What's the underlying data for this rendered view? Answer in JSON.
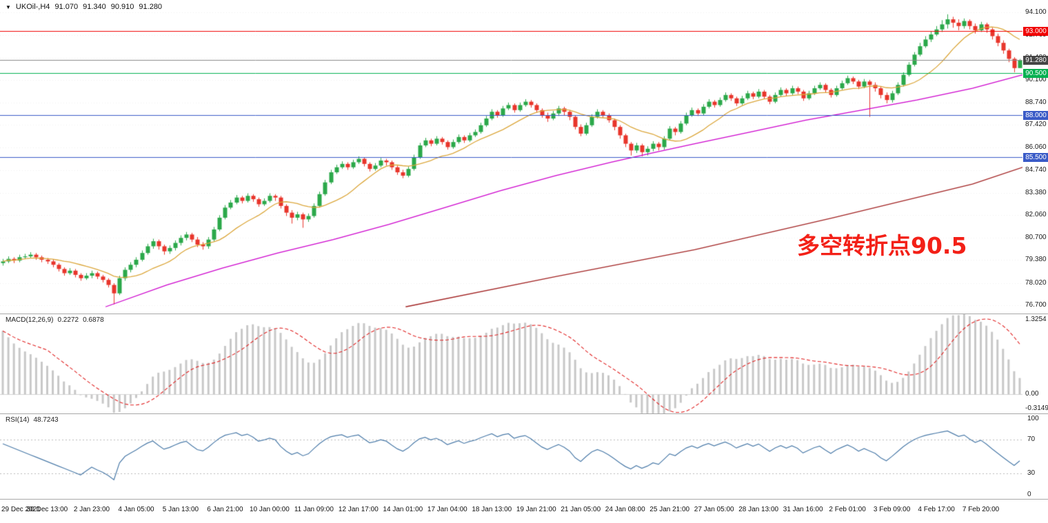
{
  "header": {
    "dropdown_icon": "▼",
    "symbol": "UKOil-,H4",
    "open": "91.070",
    "high": "91.340",
    "low": "90.910",
    "close": "91.280"
  },
  "annotation": {
    "text": "多空转折点90.5"
  },
  "colors": {
    "up": "#2ba84a",
    "down": "#e8352b",
    "ma_fast": "#dba63a",
    "ma_mid": "#cc00cc",
    "ma_slow": "#a02020",
    "level_red": "#f00000",
    "level_green": "#00b050",
    "level_blue": "#3a5bc7",
    "current_price": "#8a8a8a",
    "current_tag_bg": "#454545",
    "macd_hist": "#c8c8c8",
    "macd_signal": "#e02020",
    "rsi_line": "#4a7aa8",
    "rsi_level": "#b8b8b8",
    "grid": "#ededed",
    "separator": "#a8a8a8",
    "annotation": "#f32017",
    "axis_text": "#1a1a1a"
  },
  "chart_data": {
    "type": "candlestick",
    "symbol": "UKOil-",
    "timeframe": "H4",
    "ylim": [
      76.2,
      94.85
    ],
    "first_open": 79.2,
    "candles": [
      [
        79.45,
        79.05,
        79.3
      ],
      [
        79.6,
        79.2,
        79.45
      ],
      [
        79.55,
        79.2,
        79.35
      ],
      [
        79.7,
        79.25,
        79.55
      ],
      [
        79.75,
        79.45,
        79.6
      ],
      [
        79.85,
        79.5,
        79.7
      ],
      [
        79.8,
        79.4,
        79.55
      ],
      [
        79.65,
        79.25,
        79.4
      ],
      [
        79.5,
        79.15,
        79.3
      ],
      [
        79.4,
        78.95,
        79.1
      ],
      [
        79.2,
        78.7,
        78.85
      ],
      [
        78.95,
        78.45,
        78.6
      ],
      [
        78.9,
        78.5,
        78.75
      ],
      [
        78.85,
        78.35,
        78.5
      ],
      [
        78.6,
        78.15,
        78.3
      ],
      [
        78.6,
        78.2,
        78.45
      ],
      [
        78.75,
        78.3,
        78.6
      ],
      [
        78.7,
        78.25,
        78.4
      ],
      [
        78.5,
        78.05,
        78.2
      ],
      [
        78.3,
        77.75,
        77.9
      ],
      [
        78.0,
        76.75,
        77.4
      ],
      [
        78.45,
        77.3,
        78.3
      ],
      [
        78.95,
        78.15,
        78.8
      ],
      [
        79.25,
        78.65,
        79.1
      ],
      [
        79.55,
        78.95,
        79.4
      ],
      [
        79.95,
        79.3,
        79.8
      ],
      [
        80.35,
        79.7,
        80.2
      ],
      [
        80.65,
        80.05,
        80.5
      ],
      [
        80.6,
        80.0,
        80.2
      ],
      [
        80.3,
        79.7,
        79.9
      ],
      [
        80.25,
        79.75,
        80.1
      ],
      [
        80.55,
        79.95,
        80.4
      ],
      [
        80.85,
        80.25,
        80.7
      ],
      [
        81.05,
        80.55,
        80.9
      ],
      [
        81.0,
        80.45,
        80.6
      ],
      [
        80.75,
        80.15,
        80.3
      ],
      [
        80.45,
        80.0,
        80.2
      ],
      [
        80.75,
        80.05,
        80.6
      ],
      [
        81.35,
        80.5,
        81.2
      ],
      [
        82.05,
        81.1,
        81.9
      ],
      [
        82.65,
        81.8,
        82.5
      ],
      [
        82.95,
        82.4,
        82.8
      ],
      [
        83.25,
        82.7,
        83.1
      ],
      [
        83.2,
        82.75,
        82.9
      ],
      [
        83.35,
        82.8,
        83.2
      ],
      [
        83.3,
        82.85,
        83.0
      ],
      [
        83.1,
        82.55,
        82.7
      ],
      [
        83.05,
        82.6,
        82.9
      ],
      [
        83.35,
        82.8,
        83.2
      ],
      [
        83.3,
        82.9,
        83.1
      ],
      [
        83.2,
        82.45,
        82.6
      ],
      [
        82.7,
        82.0,
        82.2
      ],
      [
        82.35,
        81.55,
        81.9
      ],
      [
        82.25,
        81.75,
        82.1
      ],
      [
        82.2,
        81.3,
        81.8
      ],
      [
        82.15,
        81.65,
        82.0
      ],
      [
        82.75,
        81.9,
        82.6
      ],
      [
        83.45,
        82.5,
        83.3
      ],
      [
        84.15,
        83.2,
        84.0
      ],
      [
        84.75,
        83.9,
        84.6
      ],
      [
        85.05,
        84.5,
        84.9
      ],
      [
        85.25,
        84.8,
        85.1
      ],
      [
        85.2,
        84.75,
        84.9
      ],
      [
        85.35,
        84.8,
        85.2
      ],
      [
        85.55,
        85.1,
        85.4
      ],
      [
        85.5,
        84.95,
        85.1
      ],
      [
        85.2,
        84.65,
        84.8
      ],
      [
        85.15,
        84.7,
        85.0
      ],
      [
        85.45,
        84.9,
        85.3
      ],
      [
        85.4,
        85.0,
        85.2
      ],
      [
        85.3,
        84.75,
        84.9
      ],
      [
        85.0,
        84.45,
        84.6
      ],
      [
        84.75,
        84.25,
        84.4
      ],
      [
        84.95,
        84.3,
        84.8
      ],
      [
        85.65,
        84.7,
        85.5
      ],
      [
        86.35,
        85.4,
        86.2
      ],
      [
        86.65,
        86.1,
        86.5
      ],
      [
        86.6,
        86.15,
        86.3
      ],
      [
        86.75,
        86.2,
        86.6
      ],
      [
        86.7,
        86.25,
        86.4
      ],
      [
        86.5,
        85.95,
        86.1
      ],
      [
        86.55,
        86.0,
        86.4
      ],
      [
        86.85,
        86.3,
        86.7
      ],
      [
        86.8,
        86.35,
        86.5
      ],
      [
        86.95,
        86.4,
        86.8
      ],
      [
        87.15,
        86.7,
        87.0
      ],
      [
        87.55,
        86.9,
        87.4
      ],
      [
        87.95,
        87.3,
        87.8
      ],
      [
        88.35,
        87.7,
        88.2
      ],
      [
        88.3,
        87.85,
        88.0
      ],
      [
        88.55,
        87.9,
        88.4
      ],
      [
        88.75,
        88.3,
        88.6
      ],
      [
        88.7,
        88.15,
        88.3
      ],
      [
        88.75,
        88.2,
        88.6
      ],
      [
        88.95,
        88.5,
        88.8
      ],
      [
        88.9,
        88.45,
        88.6
      ],
      [
        88.7,
        88.15,
        88.3
      ],
      [
        88.4,
        87.85,
        88.0
      ],
      [
        88.15,
        87.6,
        87.8
      ],
      [
        88.25,
        87.7,
        88.1
      ],
      [
        88.55,
        87.95,
        88.4
      ],
      [
        88.5,
        88.0,
        88.2
      ],
      [
        88.3,
        87.7,
        87.9
      ],
      [
        88.0,
        87.15,
        87.3
      ],
      [
        87.45,
        86.75,
        86.9
      ],
      [
        87.55,
        86.8,
        87.4
      ],
      [
        88.05,
        87.3,
        87.9
      ],
      [
        88.35,
        87.8,
        88.2
      ],
      [
        88.3,
        87.85,
        88.0
      ],
      [
        88.1,
        87.55,
        87.7
      ],
      [
        87.8,
        87.1,
        87.3
      ],
      [
        87.4,
        86.6,
        86.8
      ],
      [
        86.9,
        86.1,
        86.3
      ],
      [
        86.4,
        85.6,
        85.9
      ],
      [
        86.35,
        85.75,
        86.2
      ],
      [
        86.3,
        85.55,
        85.8
      ],
      [
        86.15,
        85.6,
        86.0
      ],
      [
        86.45,
        85.85,
        86.3
      ],
      [
        86.4,
        85.9,
        86.1
      ],
      [
        86.75,
        85.95,
        86.6
      ],
      [
        87.35,
        86.5,
        87.2
      ],
      [
        87.3,
        86.8,
        87.0
      ],
      [
        87.65,
        86.9,
        87.5
      ],
      [
        88.15,
        87.4,
        88.0
      ],
      [
        88.45,
        87.9,
        88.3
      ],
      [
        88.4,
        87.95,
        88.1
      ],
      [
        88.65,
        88.0,
        88.5
      ],
      [
        88.95,
        88.4,
        88.8
      ],
      [
        88.9,
        88.45,
        88.6
      ],
      [
        89.05,
        88.5,
        88.9
      ],
      [
        89.35,
        88.8,
        89.2
      ],
      [
        89.3,
        88.85,
        89.0
      ],
      [
        89.1,
        88.55,
        88.7
      ],
      [
        89.15,
        88.6,
        89.0
      ],
      [
        89.45,
        88.9,
        89.3
      ],
      [
        89.4,
        88.95,
        89.1
      ],
      [
        89.55,
        89.0,
        89.4
      ],
      [
        89.5,
        88.95,
        89.1
      ],
      [
        89.2,
        88.65,
        88.8
      ],
      [
        89.35,
        88.7,
        89.2
      ],
      [
        89.65,
        89.1,
        89.5
      ],
      [
        89.6,
        89.15,
        89.3
      ],
      [
        89.75,
        89.2,
        89.6
      ],
      [
        89.7,
        89.25,
        89.4
      ],
      [
        89.5,
        88.85,
        89.0
      ],
      [
        89.45,
        88.9,
        89.3
      ],
      [
        89.75,
        89.2,
        89.6
      ],
      [
        89.95,
        89.5,
        89.8
      ],
      [
        89.9,
        89.35,
        89.5
      ],
      [
        89.6,
        89.05,
        89.2
      ],
      [
        89.75,
        89.1,
        89.6
      ],
      [
        90.05,
        89.5,
        89.9
      ],
      [
        90.35,
        89.8,
        90.2
      ],
      [
        90.3,
        89.85,
        90.0
      ],
      [
        90.1,
        89.55,
        89.7
      ],
      [
        90.15,
        89.6,
        90.0
      ],
      [
        90.1,
        87.9,
        89.8
      ],
      [
        89.95,
        89.4,
        89.6
      ],
      [
        89.7,
        89.0,
        89.2
      ],
      [
        89.35,
        88.7,
        88.9
      ],
      [
        89.45,
        88.75,
        89.3
      ],
      [
        89.95,
        89.2,
        89.8
      ],
      [
        90.55,
        89.7,
        90.4
      ],
      [
        91.15,
        90.3,
        91.0
      ],
      [
        91.75,
        90.9,
        91.6
      ],
      [
        92.3,
        91.5,
        92.1
      ],
      [
        92.7,
        92.0,
        92.5
      ],
      [
        93.0,
        92.35,
        92.8
      ],
      [
        93.3,
        92.7,
        93.1
      ],
      [
        93.65,
        92.95,
        93.4
      ],
      [
        94.0,
        93.15,
        93.7
      ],
      [
        93.85,
        93.2,
        93.5
      ],
      [
        93.7,
        93.05,
        93.3
      ],
      [
        93.75,
        93.15,
        93.6
      ],
      [
        93.7,
        93.1,
        93.3
      ],
      [
        93.45,
        92.85,
        93.05
      ],
      [
        93.55,
        92.95,
        93.4
      ],
      [
        93.5,
        92.9,
        93.1
      ],
      [
        93.2,
        92.5,
        92.7
      ],
      [
        92.85,
        92.1,
        92.3
      ],
      [
        92.45,
        91.65,
        91.85
      ],
      [
        91.95,
        91.15,
        91.35
      ],
      [
        91.45,
        90.55,
        90.8
      ],
      [
        91.34,
        90.91,
        91.28
      ]
    ],
    "price_ticks": [
      "94.100",
      "92.760",
      "91.420",
      "90.100",
      "88.740",
      "87.420",
      "86.060",
      "84.740",
      "83.380",
      "82.060",
      "80.700",
      "79.380",
      "78.020",
      "76.700"
    ],
    "levels": [
      {
        "price": 93.0,
        "label": "93.000",
        "color_key": "level_red"
      },
      {
        "price": 90.5,
        "label": "90.500",
        "color_key": "level_green"
      },
      {
        "price": 88.0,
        "label": "88.000",
        "color_key": "level_blue"
      },
      {
        "price": 85.5,
        "label": "85.500",
        "color_key": "level_blue"
      }
    ],
    "current_price": {
      "price": 91.28,
      "label": "91.280"
    },
    "ma_fast_period": 12,
    "ma_mid_anchors": [
      [
        19,
        76.6
      ],
      [
        30,
        77.9
      ],
      [
        40,
        78.9
      ],
      [
        50,
        79.8
      ],
      [
        60,
        80.6
      ],
      [
        70,
        81.5
      ],
      [
        80,
        82.5
      ],
      [
        90,
        83.5
      ],
      [
        100,
        84.4
      ],
      [
        110,
        85.2
      ],
      [
        118,
        85.8
      ],
      [
        125,
        86.3
      ],
      [
        135,
        87.0
      ],
      [
        145,
        87.7
      ],
      [
        155,
        88.3
      ],
      [
        165,
        88.9
      ],
      [
        175,
        89.6
      ],
      [
        184,
        90.4
      ]
    ],
    "ma_slow_anchors": [
      [
        73,
        76.6
      ],
      [
        100,
        78.4
      ],
      [
        125,
        80.0
      ],
      [
        150,
        81.9
      ],
      [
        175,
        83.9
      ],
      [
        184,
        84.9
      ]
    ],
    "time_labels": [
      "29 Dec 2021",
      "30 Dec 13:00",
      "2 Jan 23:00",
      "4 Jan 05:00",
      "5 Jan 13:00",
      "6 Jan 21:00",
      "10 Jan 00:00",
      "11 Jan 09:00",
      "12 Jan 17:00",
      "14 Jan 01:00",
      "17 Jan 04:00",
      "18 Jan 13:00",
      "19 Jan 21:00",
      "21 Jan 05:00",
      "24 Jan 08:00",
      "25 Jan 21:00",
      "27 Jan 05:00",
      "28 Jan 13:00",
      "31 Jan 16:00",
      "2 Feb 01:00",
      "3 Feb 09:00",
      "4 Feb 17:00",
      "7 Feb 20:00"
    ],
    "macd": {
      "label": "MACD(12,26,9)",
      "value_macd": "0.2272",
      "value_signal": "0.6878",
      "axis_top": "1.3254",
      "axis_zero": "0.00",
      "axis_bottom": "-0.3149",
      "params": [
        12,
        26,
        9
      ]
    },
    "rsi": {
      "label": "RSI(14)",
      "value": "48.7243",
      "axis": [
        "100",
        "70",
        "30",
        "0"
      ],
      "period": 14,
      "levels": [
        70,
        30
      ]
    }
  }
}
